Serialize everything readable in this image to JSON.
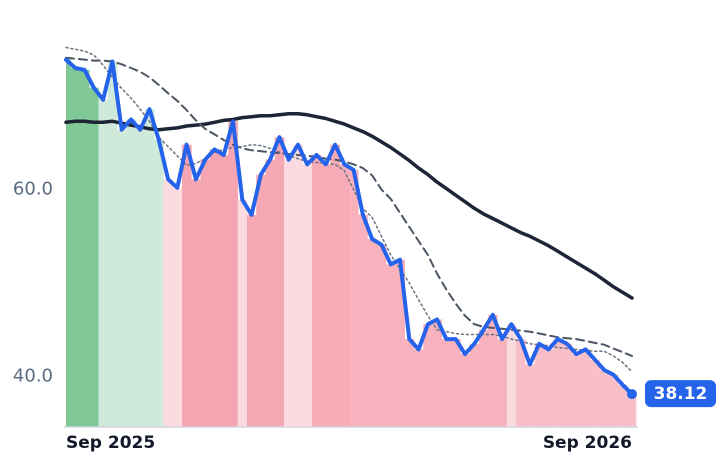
{
  "chart_data": {
    "type": "line",
    "categories": [
      "Sep 2025",
      null,
      null,
      null,
      null,
      null,
      null,
      null,
      null,
      null,
      null,
      null,
      null,
      null,
      null,
      null,
      null,
      null,
      null,
      null,
      null,
      null,
      null,
      null,
      null,
      null,
      null,
      null,
      null,
      null,
      null,
      null,
      null,
      null,
      null,
      null,
      null,
      null,
      null,
      null,
      null,
      null,
      null,
      null,
      null,
      null,
      null,
      null,
      null,
      null,
      null,
      null,
      null,
      null,
      null,
      null,
      null,
      null,
      null,
      null,
      null,
      "Sep 2026"
    ],
    "series": [
      {
        "color": "#1e2537",
        "style": "solid",
        "width": 3.5,
        "values": [
          67.2,
          67.3,
          67.3,
          67.2,
          67.2,
          67.3,
          67.1,
          66.9,
          66.7,
          66.5,
          66.4,
          66.5,
          66.6,
          66.8,
          66.9,
          67.0,
          67.2,
          67.4,
          67.5,
          67.7,
          67.8,
          67.9,
          67.9,
          68.0,
          68.1,
          68.1,
          68.0,
          67.8,
          67.6,
          67.3,
          67.0,
          66.6,
          66.2,
          65.7,
          65.1,
          64.5,
          63.8,
          63.1,
          62.3,
          61.6,
          60.8,
          60.1,
          59.4,
          58.7,
          58.0,
          57.4,
          56.9,
          56.4,
          55.9,
          55.4,
          55.0,
          54.5,
          54.0,
          53.4,
          52.8,
          52.2,
          51.6,
          51.0,
          50.3,
          49.6,
          49.0,
          48.4
        ]
      },
      {
        "color": "#4b5563",
        "style": "dashed",
        "width": 2,
        "values": [
          74.1,
          74.0,
          73.9,
          73.8,
          73.8,
          73.7,
          73.4,
          73.0,
          72.6,
          72.0,
          71.2,
          70.3,
          69.5,
          68.5,
          67.4,
          66.5,
          65.9,
          65.3,
          64.8,
          64.4,
          64.2,
          64.1,
          64.0,
          63.9,
          63.8,
          63.7,
          63.6,
          63.5,
          63.3,
          63.2,
          63.0,
          62.7,
          62.3,
          61.5,
          60.0,
          59.0,
          57.5,
          56.0,
          54.5,
          53.0,
          51.0,
          49.3,
          47.8,
          46.5,
          45.6,
          45.3,
          45.2,
          45.1,
          45.0,
          44.9,
          44.8,
          44.6,
          44.4,
          44.2,
          44.1,
          44.0,
          43.8,
          43.6,
          43.4,
          43.0,
          42.6,
          42.2
        ]
      },
      {
        "color": "#6b7280",
        "style": "dotted",
        "width": 1.5,
        "values": [
          75.2,
          75.0,
          74.8,
          74.4,
          73.3,
          72.0,
          70.8,
          69.8,
          68.6,
          67.3,
          65.6,
          64.6,
          63.6,
          62.6,
          62.8,
          63.3,
          64.0,
          64.3,
          64.5,
          64.6,
          64.8,
          64.7,
          64.4,
          64.0,
          63.6,
          63.3,
          63.0,
          62.9,
          62.8,
          62.7,
          62.0,
          60.0,
          58.0,
          57.0,
          55.0,
          53.0,
          51.5,
          50.0,
          48.2,
          46.5,
          45.0,
          44.8,
          44.6,
          44.5,
          44.5,
          44.5,
          44.5,
          44.3,
          44.0,
          43.8,
          43.5,
          43.4,
          43.3,
          43.1,
          43.0,
          42.9,
          42.8,
          42.7,
          42.7,
          42.2,
          41.5,
          40.5
        ]
      },
      {
        "color": "#2563eb",
        "style": "solid",
        "width": 4,
        "values": [
          73.9,
          73.0,
          72.8,
          70.9,
          69.6,
          73.7,
          66.4,
          67.5,
          66.4,
          68.6,
          65.3,
          61.1,
          60.2,
          64.8,
          61.1,
          63.2,
          64.3,
          63.7,
          67.3,
          58.9,
          57.3,
          61.6,
          63.2,
          65.6,
          63.2,
          64.8,
          62.7,
          63.7,
          62.7,
          64.8,
          62.7,
          62.1,
          57.3,
          54.7,
          54.1,
          52.0,
          52.5,
          44.0,
          42.9,
          45.6,
          46.1,
          44.0,
          44.0,
          42.4,
          43.5,
          45.0,
          46.6,
          44.0,
          45.6,
          44.0,
          41.3,
          43.5,
          42.9,
          44.0,
          43.5,
          42.4,
          42.9,
          41.8,
          40.7,
          40.2,
          39.1,
          38.12
        ]
      }
    ],
    "area_series": 3,
    "area_colors": [
      "#80c997",
      "#80c997",
      "#80c997",
      "#80c997",
      "#cfeada",
      "#cfeada",
      "#cfeada",
      "#cfeada",
      "#cfeada",
      "#cfeada",
      "#cfeada",
      "#fcdbe0",
      "#fcdbe0",
      "#f5a5b2",
      "#f5a5b2",
      "#f5a5b2",
      "#f5a5b2",
      "#f5a5b2",
      "#f5a5b2",
      "#fcdbe0",
      "#f5a8b4",
      "#f5a8b4",
      "#f5a8b4",
      "#f5a8b4",
      "#fcdbe0",
      "#fcdbe0",
      "#fcdbe0",
      "#f6abb7",
      "#f6abb7",
      "#f6abb7",
      "#f6abb7",
      "#f7b2bd",
      "#f7b2bd",
      "#f7b2bd",
      "#f7b2bd",
      "#f7b2bd",
      "#f7b2bd",
      "#f7b2bd",
      "#f7b2bd",
      "#f7b2bd",
      "#f7b2bd",
      "#f7b2bd",
      "#f7b2bd",
      "#f7b2bd",
      "#f7b2bd",
      "#f7b2bd",
      "#f7b2bd",
      "#f7b2bd",
      "#fcdbe0",
      "#f8bfc8",
      "#f8bfc8",
      "#f8bfc8",
      "#f8bfc8",
      "#f8bfc8",
      "#f8bfc8",
      "#f8bfc8",
      "#f8bfc8",
      "#f8bfc8",
      "#f8bfc8",
      "#f8bfc8",
      "#f8bfc8",
      "#f8bfc8"
    ],
    "end_label": "38.12",
    "ylim": [
      34.6,
      76
    ],
    "yticks": [
      {
        "value": 40,
        "label": "40.0"
      },
      {
        "value": 60,
        "label": "60.0"
      }
    ],
    "grid": false
  }
}
